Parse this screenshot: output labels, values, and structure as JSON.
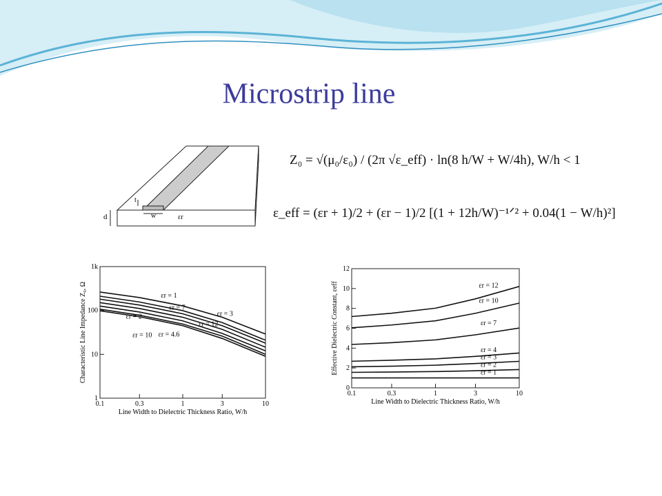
{
  "title": "Microstrip line",
  "diagram": {
    "labels": [
      "t",
      "w",
      "d",
      "εr"
    ]
  },
  "formulas": [
    "Z₀ = √(μ₀/ε₀) / (2π √ε_eff) · ln(8 h/W + W/4h), W/h < 1",
    "ε_eff = (εr + 1)/2 + (εr − 1)/2 [(1 + 12h/W)⁻¹ᐟ² + 0.04(1 − W/h)²]"
  ],
  "chart_data": [
    {
      "type": "line",
      "xscale": "log",
      "yscale": "log",
      "xlabel": "Line Width to Dielectric Thickness Ratio, W/h",
      "ylabel": "Characteristic Line Impedance Z₀, Ω",
      "x": [
        0.1,
        0.3,
        1,
        3,
        10
      ],
      "xlim": [
        0.1,
        10
      ],
      "ylim": [
        1,
        1000
      ],
      "xticks": [
        0.1,
        0.3,
        1,
        3,
        10
      ],
      "yticks": [
        1,
        10,
        100,
        {
          "value": 1000,
          "label": "1k"
        }
      ],
      "series": [
        {
          "name": "εr = 1",
          "color": "#111111",
          "values": [
            263,
            197,
            127,
            70,
            29
          ]
        },
        {
          "name": "εr = 2",
          "color": "#111111",
          "values": [
            211,
            156,
            99,
            53,
            21
          ]
        },
        {
          "name": "εr = 3",
          "color": "#111111",
          "values": [
            181,
            133,
            84,
            45,
            18
          ]
        },
        {
          "name": "εr = 4.6",
          "color": "#111111",
          "values": [
            151,
            111,
            70,
            37,
            14.5
          ]
        },
        {
          "name": "εr = 7",
          "color": "#111111",
          "values": [
            126,
            92,
            58,
            30,
            12
          ]
        },
        {
          "name": "εr = 10",
          "color": "#111111",
          "values": [
            107,
            78,
            49,
            26,
            10
          ]
        },
        {
          "name": "εr = 12",
          "color": "#111111",
          "values": [
            98,
            72,
            45,
            23,
            9
          ]
        }
      ]
    },
    {
      "type": "line",
      "xscale": "log",
      "yscale": "linear",
      "xlabel": "Line Width to Dielectric Thickness Ratio, W/h",
      "ylabel": "Effective Dielectric Constant, εeff",
      "x": [
        0.1,
        0.3,
        1,
        3,
        10
      ],
      "xlim": [
        0.1,
        10
      ],
      "ylim": [
        0,
        12
      ],
      "xticks": [
        0.1,
        0.3,
        1,
        3,
        10
      ],
      "yticks": [
        0,
        2,
        4,
        6,
        8,
        10,
        12
      ],
      "series": [
        {
          "name": "εr = 12",
          "color": "#111111",
          "values": [
            7.18,
            7.51,
            8.02,
            8.96,
            10.21
          ]
        },
        {
          "name": "εr = 10",
          "color": "#111111",
          "values": [
            6.05,
            6.33,
            6.75,
            7.51,
            8.53
          ]
        },
        {
          "name": "εr = 7",
          "color": "#111111",
          "values": [
            4.37,
            4.55,
            4.83,
            5.34,
            6.02
          ]
        },
        {
          "name": "εr = 4",
          "color": "#111111",
          "values": [
            2.68,
            2.78,
            2.92,
            3.17,
            3.51
          ]
        },
        {
          "name": "εr = 3",
          "color": "#111111",
          "values": [
            2.12,
            2.18,
            2.28,
            2.45,
            2.67
          ]
        },
        {
          "name": "εr = 2",
          "color": "#111111",
          "values": [
            1.56,
            1.59,
            1.64,
            1.72,
            1.84
          ]
        },
        {
          "name": "εr = 1",
          "color": "#111111",
          "values": [
            1,
            1,
            1,
            1,
            1
          ]
        }
      ]
    }
  ]
}
